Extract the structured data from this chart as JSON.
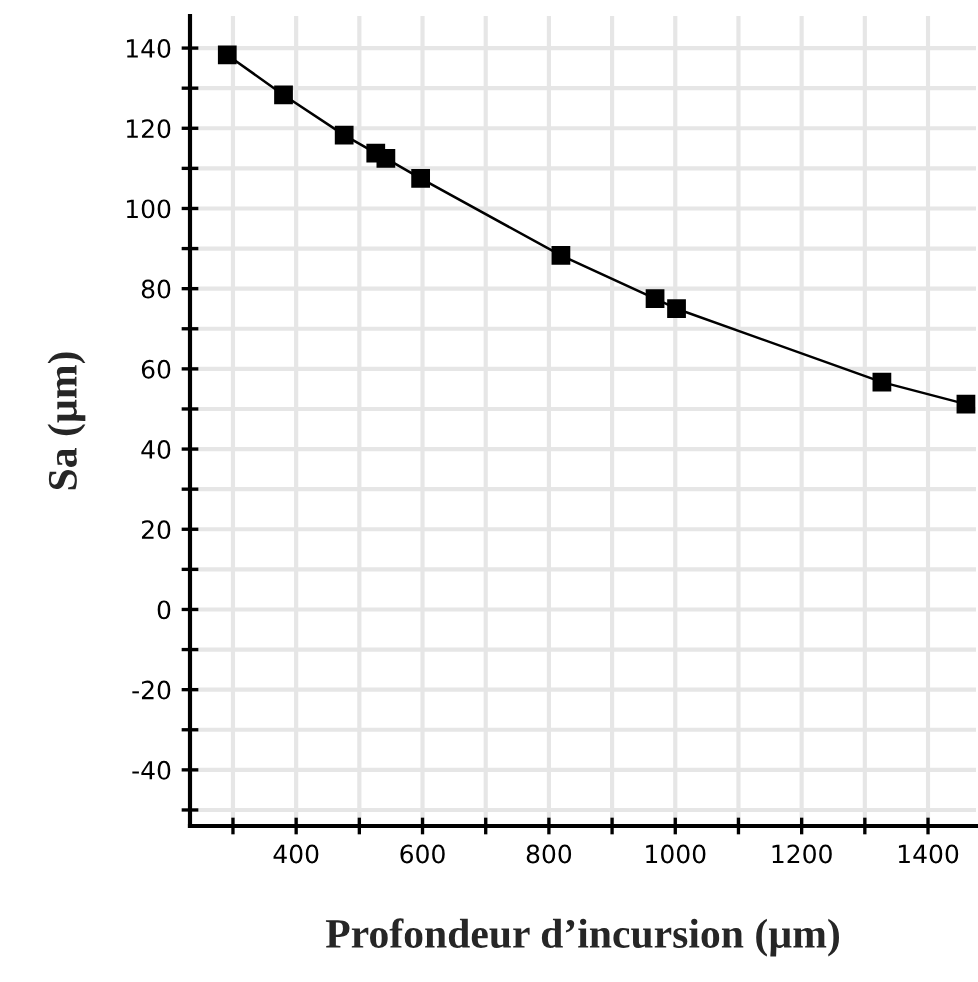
{
  "chart_data": {
    "type": "line",
    "xlabel": "Profondeur d’incursion (µm)",
    "ylabel": "Sa (µm)",
    "x": [
      291,
      380,
      476,
      526,
      542,
      597,
      819,
      968,
      1002,
      1327,
      1460
    ],
    "series": [
      {
        "color": "#000000",
        "values": [
          138.3,
          128.3,
          118.3,
          113.8,
          112.5,
          107.5,
          88.3,
          77.5,
          75,
          56.7,
          51.2
        ]
      }
    ],
    "marker": "square",
    "line_style": "solid",
    "xlim": [
      232,
      1476
    ],
    "xticks": [
      {
        "value": 300,
        "label": null
      },
      400,
      {
        "value": 500,
        "label": null
      },
      600,
      {
        "value": 700,
        "label": null
      },
      800,
      {
        "value": 900,
        "label": null
      },
      1000,
      {
        "value": 1100,
        "label": null
      },
      1200,
      {
        "value": 1300,
        "label": null
      },
      1400
    ],
    "ylim": [
      -54,
      148
    ],
    "yticks": [
      {
        "value": -50,
        "label": null
      },
      -40,
      {
        "value": -30,
        "label": null
      },
      -20,
      {
        "value": -10,
        "label": null
      },
      0,
      {
        "value": 10,
        "label": null
      },
      20,
      {
        "value": 30,
        "label": null
      },
      40,
      {
        "value": 50,
        "label": null
      },
      60,
      {
        "value": 70,
        "label": null
      },
      80,
      {
        "value": 90,
        "label": null
      },
      100,
      {
        "value": 110,
        "label": null
      },
      120,
      {
        "value": 130,
        "label": null
      },
      140
    ],
    "grid": true
  }
}
